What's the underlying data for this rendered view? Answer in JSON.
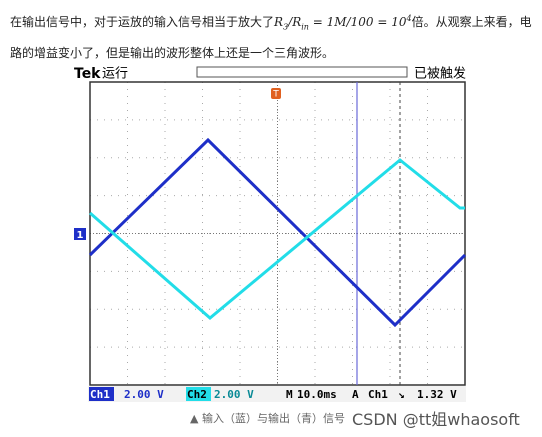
{
  "paragraph": {
    "text_before": "在输出信号中，对于运放的输入信号相当于放大了",
    "math": [
      "R",
      "3",
      "/R",
      "in",
      " = 1M/100 = 10",
      "4"
    ],
    "text_after": "倍。从观察上来看，电路的增益变小了，但是输出的波形整体上还是一个三角波形。"
  },
  "scope": {
    "brand": "Tek",
    "status": "运行",
    "trigger_state": "已被触发",
    "trigger_marker": "T",
    "channel_marker": "1",
    "readout": [
      "Ch1",
      "2.00 V",
      "Ch2",
      "2.00 V",
      "M",
      "10.0ms",
      "A",
      "Ch1",
      "↘",
      "1.32 V"
    ]
  },
  "caption": "▲ 输入（蓝）与输出（青）信号",
  "watermark": "CSDN @tt姐whaosoft"
}
